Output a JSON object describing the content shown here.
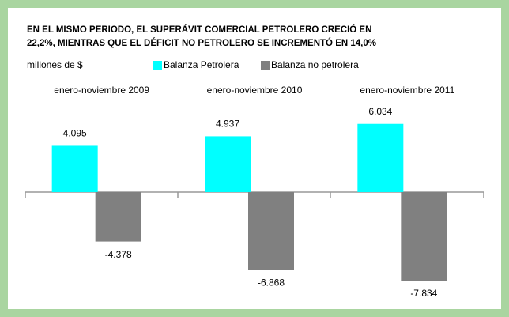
{
  "chart_data": {
    "type": "bar",
    "title": [
      "EN EL MISMO PERIODO, EL SUPERÁVIT COMERCIAL  PETROLERO CRECIÓ EN",
      "22,2%, MIENTRAS QUE EL DÉFICIT NO PETROLERO SE INCREMENTÓ  EN 14,0%"
    ],
    "y_label": "millones de $",
    "categories": [
      "enero-noviembre  2009",
      "enero-noviembre  2010",
      "enero-noviembre  2011"
    ],
    "series": [
      {
        "name": "Balanza Petrolera",
        "color": "#00ffff",
        "values": [
          4095,
          4937,
          6034
        ],
        "value_labels": [
          "4.095",
          "4.937",
          "6.034"
        ]
      },
      {
        "name": "Balanza no petrolera",
        "color": "#808080",
        "values": [
          -4378,
          -6868,
          -7834
        ],
        "value_labels": [
          "-4.378",
          "-6.868",
          "-7.834"
        ]
      }
    ]
  }
}
